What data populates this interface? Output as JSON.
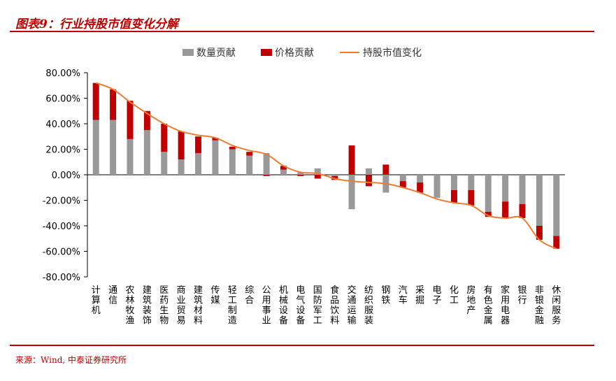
{
  "page": {
    "title": "图表9：行业持股市值变化分解",
    "source": "来源：Wind, 中泰证券研究所"
  },
  "colors": {
    "accent": "#c00000",
    "quantity": "#999999",
    "price": "#c00000",
    "line": "#ed7d31"
  },
  "chart_data": {
    "type": "bar",
    "stacked": true,
    "ylim": [
      -80,
      80
    ],
    "ytick_step": 20,
    "ytick_format": "percent_2dp",
    "legend_position": "top",
    "grid": false,
    "categories": [
      "计算机",
      "通信",
      "农林牧渔",
      "建筑装饰",
      "医药生物",
      "商业贸易",
      "建筑材料",
      "传媒",
      "轻工制造",
      "综合",
      "公用事业",
      "机械设备",
      "电气设备",
      "国防军工",
      "食品饮料",
      "交通运输",
      "纺织服装",
      "钢铁",
      "汽车",
      "采掘",
      "电子",
      "化工",
      "房地产",
      "有色金属",
      "家用电器",
      "银行",
      "非银金融",
      "休闲服务"
    ],
    "series": [
      {
        "name": "数量贡献",
        "kind": "bar",
        "values": [
          43,
          43,
          28,
          35,
          18,
          12,
          17,
          27,
          20,
          15,
          17,
          4,
          2,
          5,
          -1,
          -27,
          5,
          -14,
          -5,
          -6,
          -18,
          -12,
          -12,
          -29,
          -21,
          -23,
          -40,
          -48
        ]
      },
      {
        "name": "价格贡献",
        "kind": "bar",
        "values": [
          29,
          24,
          30,
          15,
          22,
          22,
          13,
          2,
          2,
          3,
          -1,
          3,
          -1,
          -3,
          -3,
          23,
          -9,
          8,
          -5,
          -8,
          0,
          -10,
          -12,
          -4,
          -13,
          -11,
          -11,
          -10
        ]
      },
      {
        "name": "持股市值变化",
        "kind": "line",
        "values": [
          72,
          67,
          57,
          48,
          40,
          34,
          31,
          29,
          23,
          19,
          16,
          7,
          2,
          1,
          -3,
          -5,
          -6,
          -7,
          -10,
          -14,
          -19,
          -22,
          -24,
          -32,
          -34,
          -34,
          -51,
          -58
        ]
      }
    ]
  }
}
